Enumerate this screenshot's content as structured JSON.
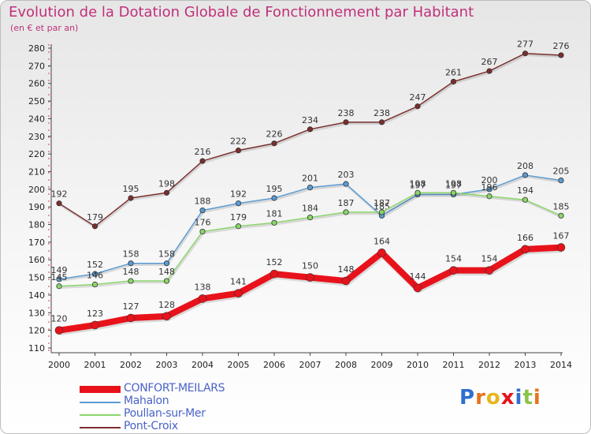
{
  "title": "Evolution de la Dotation Globale de Fonctionnement par Habitant",
  "subtitle": "(en € et par an)",
  "logo": "Proxiti",
  "colors": {
    "CONFORT-MEILARS": "#e8121b",
    "Mahalon": "#5a9bd3",
    "Poullan-sur-Mer": "#8bd66a",
    "Pont-Croix": "#7a2e2e",
    "title": "#c0307a",
    "legend_text": "#4a63c8"
  },
  "chart_data": {
    "type": "line",
    "title": "Evolution de la Dotation Globale de Fonctionnement par Habitant",
    "subtitle": "(en € et par an)",
    "xlabel": "",
    "ylabel": "",
    "ylim": [
      110,
      280
    ],
    "ytick_step": 10,
    "grid": false,
    "legend_position": "bottom-left",
    "x": [
      2000,
      2001,
      2002,
      2003,
      2004,
      2005,
      2006,
      2007,
      2008,
      2009,
      2010,
      2011,
      2012,
      2013,
      2014
    ],
    "series": [
      {
        "name": "Pont-Croix",
        "values": [
          192,
          179,
          195,
          198,
          216,
          222,
          226,
          234,
          238,
          238,
          247,
          261,
          267,
          277,
          276
        ]
      },
      {
        "name": "Mahalon",
        "values": [
          149,
          152,
          158,
          158,
          188,
          192,
          195,
          201,
          203,
          185,
          197,
          197,
          200,
          208,
          205
        ]
      },
      {
        "name": "Poullan-sur-Mer",
        "values": [
          145,
          146,
          148,
          148,
          176,
          179,
          181,
          184,
          187,
          187,
          198,
          198,
          196,
          194,
          185
        ]
      },
      {
        "name": "CONFORT-MEILARS",
        "values": [
          120,
          123,
          127,
          128,
          138,
          141,
          152,
          150,
          148,
          164,
          144,
          154,
          154,
          166,
          167
        ]
      }
    ]
  },
  "legend": [
    {
      "name": "CONFORT-MEILARS"
    },
    {
      "name": "Mahalon"
    },
    {
      "name": "Poullan-sur-Mer"
    },
    {
      "name": "Pont-Croix"
    }
  ]
}
